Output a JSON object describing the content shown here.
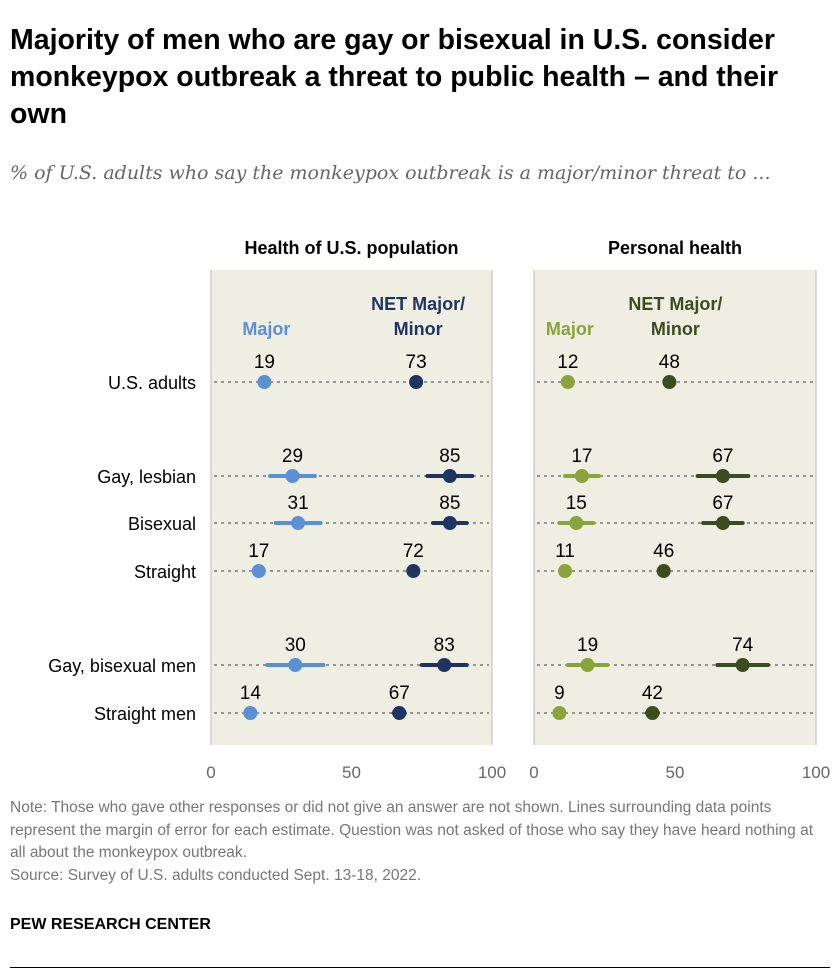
{
  "title": "Majority of men who are gay or bisexual in U.S. consider monkeypox outbreak a threat to public health – and their own",
  "subtitle": "% of U.S. adults who say the monkeypox outbreak is a major/minor threat to ...",
  "chart_data": [
    {
      "type": "dot",
      "title": "Health of U.S. population",
      "categories": [
        "U.S. adults",
        "Gay, lesbian",
        "Bisexual",
        "Straight",
        "Gay, bisexual men",
        "Straight men"
      ],
      "xlim": [
        0,
        100
      ],
      "xticks": [
        "0",
        "50",
        "100"
      ],
      "series": [
        {
          "name": "Major",
          "color": "#5B8FD6",
          "values": [
            19,
            29,
            31,
            17,
            30,
            14
          ],
          "moe": [
            0,
            8,
            8,
            0,
            10,
            0
          ]
        },
        {
          "name": "NET Major/ Minor",
          "color": "#1F3461",
          "values": [
            73,
            85,
            85,
            72,
            83,
            67
          ],
          "moe": [
            0,
            8,
            6,
            0,
            8,
            2
          ]
        }
      ]
    },
    {
      "type": "dot",
      "title": "Personal health",
      "categories": [
        "U.S. adults",
        "Gay, lesbian",
        "Bisexual",
        "Straight",
        "Gay, bisexual men",
        "Straight men"
      ],
      "xlim": [
        0,
        100
      ],
      "xticks": [
        "0",
        "50",
        "100"
      ],
      "series": [
        {
          "name": "Major",
          "color": "#8CA33B",
          "values": [
            12,
            17,
            15,
            11,
            19,
            9
          ],
          "moe": [
            0,
            6,
            6,
            0,
            7,
            0
          ]
        },
        {
          "name": "NET Major/ Minor",
          "color": "#3E4A1F",
          "values": [
            48,
            67,
            67,
            46,
            74,
            42
          ],
          "moe": [
            0,
            9,
            7,
            0,
            9,
            2
          ]
        }
      ]
    }
  ],
  "panel_bg": "#EEEEE3",
  "note": "Note: Those who gave other responses or did not give an answer are not shown. Lines surrounding data points represent the margin of error for each estimate. Question was not asked of those who say they have heard nothing at all about the monkeypox outbreak.",
  "source": "Source: Survey of U.S. adults conducted Sept. 13-18, 2022.",
  "brand": "PEW RESEARCH CENTER"
}
